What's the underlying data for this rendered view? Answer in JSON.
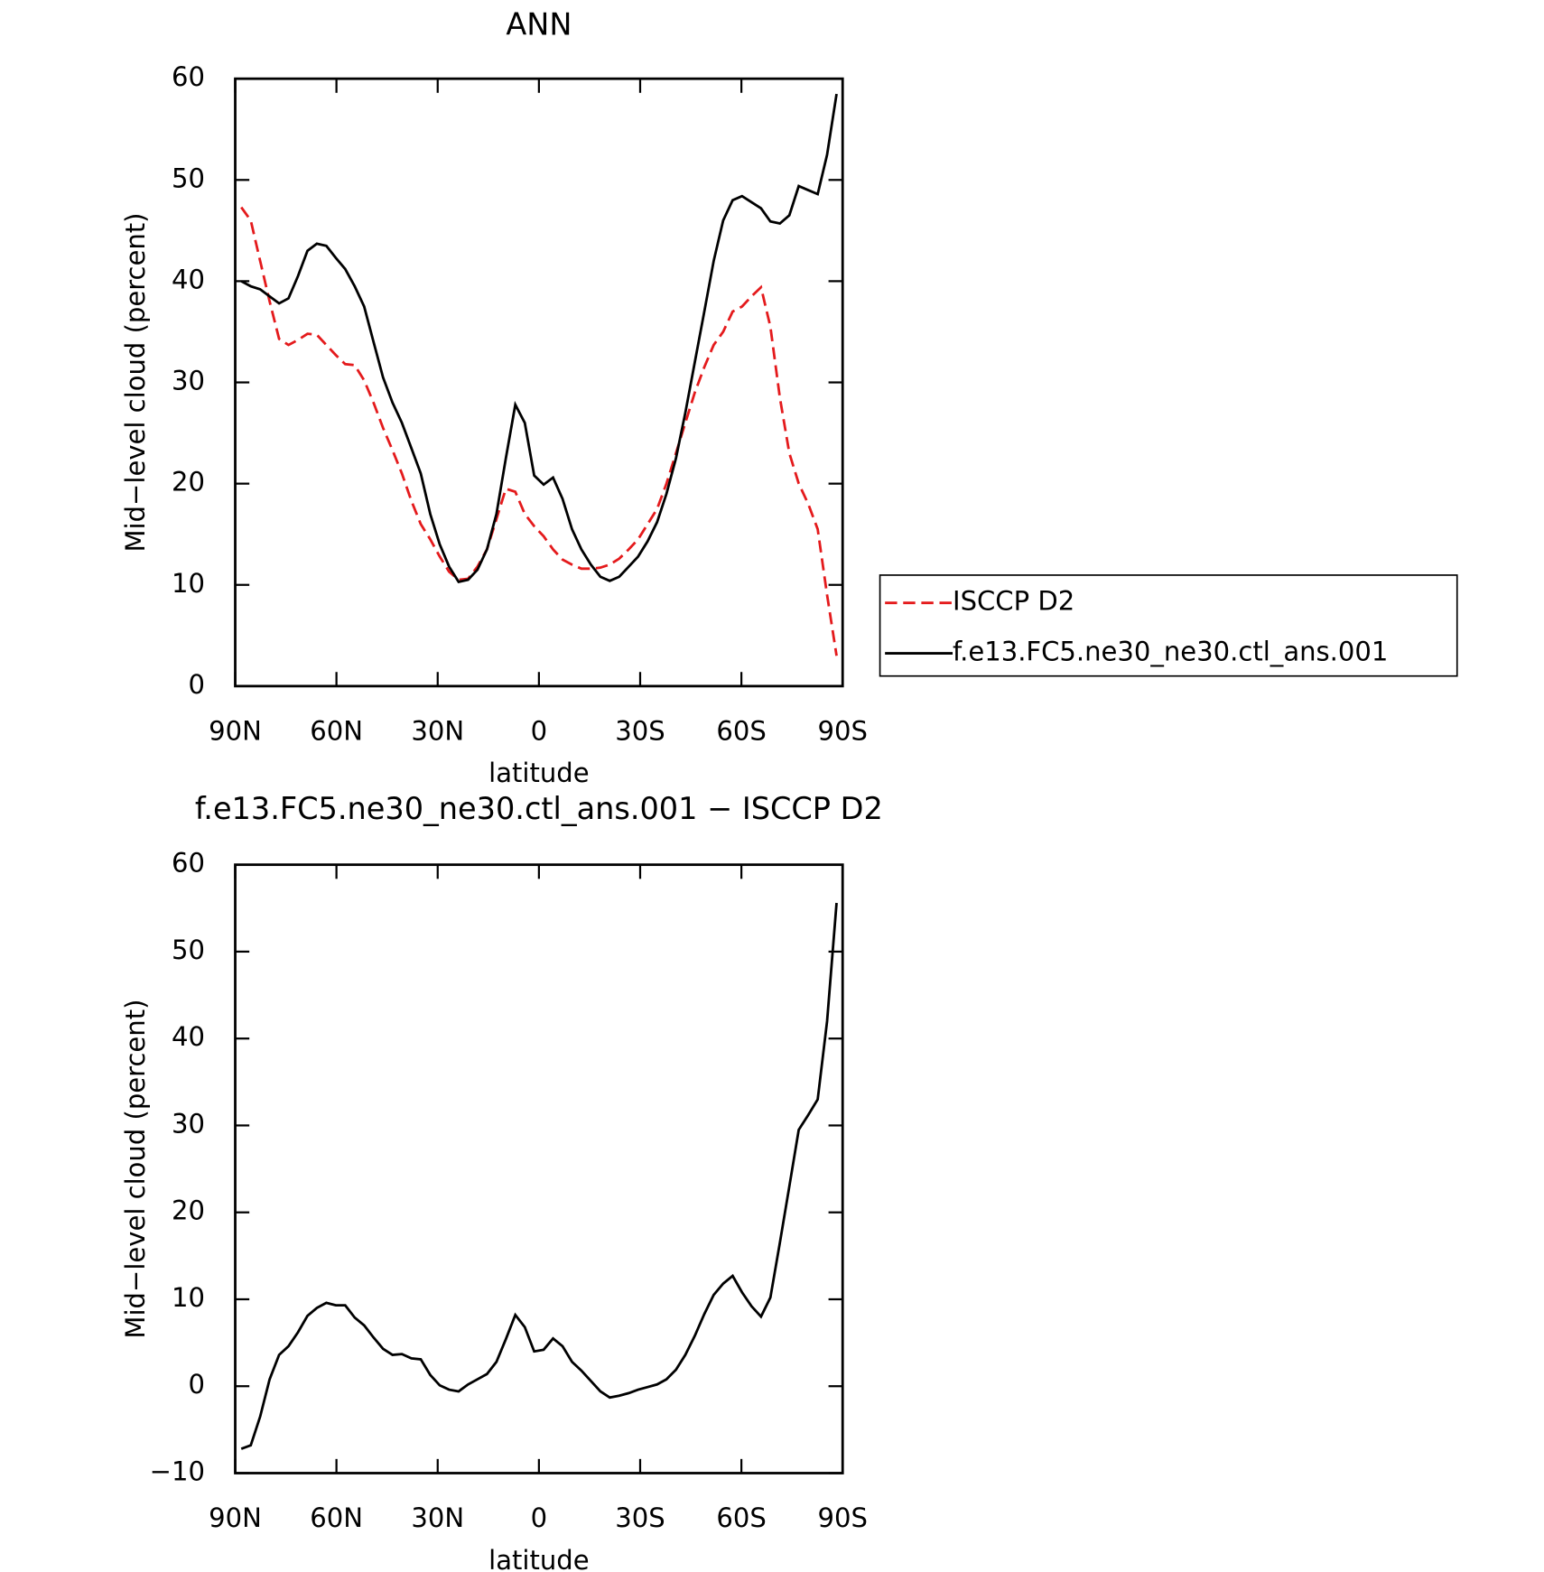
{
  "chart_data": [
    {
      "type": "line",
      "title": "ANN",
      "xlabel": "latitude",
      "ylabel": "Mid−level cloud (percent)",
      "x": [
        88.2,
        85.4,
        82.6,
        79.8,
        77,
        74.2,
        71.4,
        68.6,
        65.8,
        63,
        60.2,
        57.4,
        54.6,
        51.8,
        49,
        46.2,
        43.4,
        40.6,
        37.8,
        35,
        32.2,
        29.4,
        26.6,
        23.8,
        21,
        18.2,
        15.4,
        12.6,
        9.8,
        7,
        4.2,
        1.4,
        -1.4,
        -4.2,
        -7,
        -9.8,
        -12.6,
        -15.4,
        -18.2,
        -21,
        -23.8,
        -26.6,
        -29.4,
        -32.2,
        -35,
        -37.8,
        -40.6,
        -43.4,
        -46.2,
        -49,
        -51.8,
        -54.6,
        -57.4,
        -60.2,
        -63,
        -65.8,
        -68.6,
        -71.4,
        -74.2,
        -77,
        -79.8,
        -82.6,
        -85.4,
        -88.2
      ],
      "series": [
        {
          "name": "ISCCP D2",
          "color": "#e41a1c",
          "linestyle": "dashed",
          "values": [
            47.3,
            46,
            42,
            38,
            34.3,
            33.7,
            34.2,
            34.8,
            34.7,
            33.7,
            32.7,
            31.8,
            31.7,
            30.2,
            28,
            25.5,
            23.3,
            21,
            18.3,
            16,
            14.5,
            12.8,
            11.3,
            10.5,
            10.6,
            11.8,
            13.5,
            16.5,
            19.5,
            19.2,
            17,
            15.8,
            14.8,
            13.5,
            12.5,
            12,
            11.6,
            11.6,
            11.7,
            12,
            12.6,
            13.5,
            14.5,
            16,
            17.5,
            20,
            23,
            26,
            29,
            31.5,
            33.7,
            35,
            37,
            37.5,
            38.5,
            39.4,
            35.5,
            28.5,
            23,
            20,
            18,
            15.5,
            9,
            3
          ]
        },
        {
          "name": "f.e13.FC5.ne30_ne30.ctl_ans.001",
          "color": "#000000",
          "linestyle": "solid",
          "values": [
            40,
            39.5,
            39.2,
            38.5,
            37.8,
            38.3,
            40.5,
            43,
            43.7,
            43.5,
            42.3,
            41.2,
            39.5,
            37.5,
            34,
            30.5,
            28,
            26,
            23.5,
            21,
            17,
            14,
            11.8,
            10.3,
            10.5,
            11.5,
            13.5,
            17,
            22.5,
            27.8,
            26,
            20.8,
            19.9,
            20.6,
            18.5,
            15.5,
            13.5,
            12,
            10.8,
            10.4,
            10.8,
            11.8,
            12.8,
            14.3,
            16.2,
            19,
            22.5,
            27,
            32,
            37,
            42,
            46,
            48,
            48.4,
            47.8,
            47.2,
            45.9,
            45.7,
            46.5,
            49.4,
            49,
            48.6,
            52.5,
            58.5
          ]
        }
      ],
      "xlim": [
        90,
        -90
      ],
      "xticks": [
        {
          "value": 90,
          "label": "90N"
        },
        {
          "value": 60,
          "label": "60N"
        },
        {
          "value": 30,
          "label": "30N"
        },
        0,
        {
          "value": -30,
          "label": "30S"
        },
        {
          "value": -60,
          "label": "60S"
        },
        {
          "value": -90,
          "label": "90S"
        }
      ],
      "ylim": [
        0,
        60
      ],
      "yticks": [
        0,
        10,
        20,
        30,
        40,
        50,
        60
      ],
      "legend": "right"
    },
    {
      "type": "line",
      "title": "f.e13.FC5.ne30_ne30.ctl_ans.001 − ISCCP D2",
      "xlabel": "latitude",
      "ylabel": "Mid−level cloud (percent)",
      "x": [
        88.2,
        85.4,
        82.6,
        79.8,
        77,
        74.2,
        71.4,
        68.6,
        65.8,
        63,
        60.2,
        57.4,
        54.6,
        51.8,
        49,
        46.2,
        43.4,
        40.6,
        37.8,
        35,
        32.2,
        29.4,
        26.6,
        23.8,
        21,
        18.2,
        15.4,
        12.6,
        9.8,
        7,
        4.2,
        1.4,
        -1.4,
        -4.2,
        -7,
        -9.8,
        -12.6,
        -15.4,
        -18.2,
        -21,
        -23.8,
        -26.6,
        -29.4,
        -32.2,
        -35,
        -37.8,
        -40.6,
        -43.4,
        -46.2,
        -49,
        -51.8,
        -54.6,
        -57.4,
        -60.2,
        -63,
        -65.8,
        -68.6,
        -71.4,
        -74.2,
        -77,
        -79.8,
        -82.6,
        -85.4,
        -88.2
      ],
      "series": [
        {
          "color": "#000000",
          "linestyle": "solid",
          "values": [
            -7.2,
            -6.8,
            -3.5,
            0.8,
            3.6,
            4.6,
            6.2,
            8.1,
            9.0,
            9.6,
            9.3,
            9.3,
            7.9,
            7.0,
            5.6,
            4.3,
            3.6,
            3.7,
            3.2,
            3.1,
            1.3,
            0.1,
            -0.4,
            -0.6,
            0.2,
            0.8,
            1.4,
            2.8,
            5.4,
            8.2,
            6.8,
            4.0,
            4.2,
            5.5,
            4.6,
            2.8,
            1.8,
            0.6,
            -0.6,
            -1.3,
            -1.1,
            -0.8,
            -0.4,
            -0.1,
            0.2,
            0.8,
            1.9,
            3.6,
            5.8,
            8.3,
            10.5,
            11.8,
            12.7,
            10.8,
            9.2,
            8.0,
            10.2,
            16.5,
            23,
            29.5,
            31.2,
            33,
            42,
            55.6
          ]
        }
      ],
      "xlim": [
        90,
        -90
      ],
      "xticks": [
        {
          "value": 90,
          "label": "90N"
        },
        {
          "value": 60,
          "label": "60N"
        },
        {
          "value": 30,
          "label": "30N"
        },
        0,
        {
          "value": -30,
          "label": "30S"
        },
        {
          "value": -60,
          "label": "60S"
        },
        {
          "value": -90,
          "label": "90S"
        }
      ],
      "ylim": [
        -10,
        60
      ],
      "yticks": [
        {
          "value": -10,
          "label": "−10"
        },
        0,
        10,
        20,
        30,
        40,
        50,
        60
      ]
    }
  ]
}
